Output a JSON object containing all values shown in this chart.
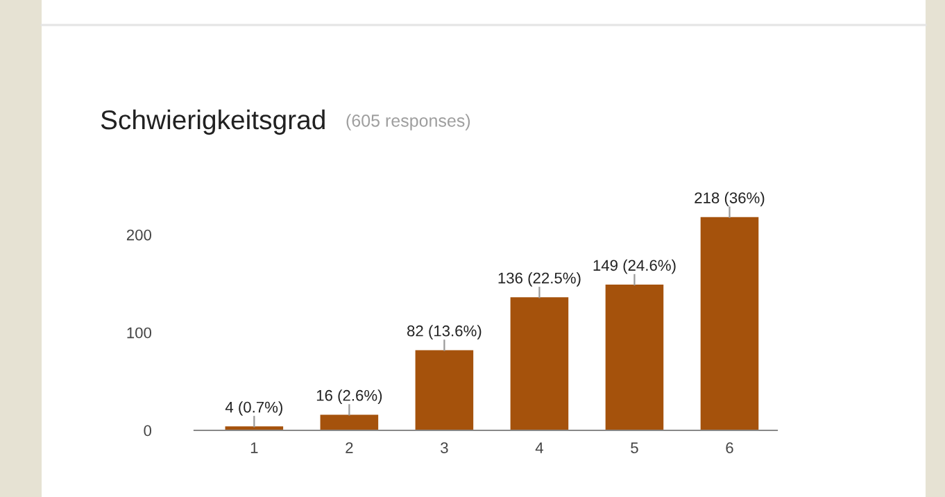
{
  "chart_data": {
    "type": "bar",
    "title": "Schwierigkeitsgrad",
    "subtitle": "(605 responses)",
    "categories": [
      "1",
      "2",
      "3",
      "4",
      "5",
      "6"
    ],
    "values": [
      4,
      16,
      82,
      136,
      149,
      218
    ],
    "value_labels": [
      "4 (0.7%)",
      "16 (2.6%)",
      "82 (13.6%)",
      "136 (22.5%)",
      "149 (24.6%)",
      "218 (36%)"
    ],
    "color": "#a5520c",
    "ylim": [
      0,
      220
    ],
    "yticks": [
      0,
      100,
      200
    ]
  }
}
